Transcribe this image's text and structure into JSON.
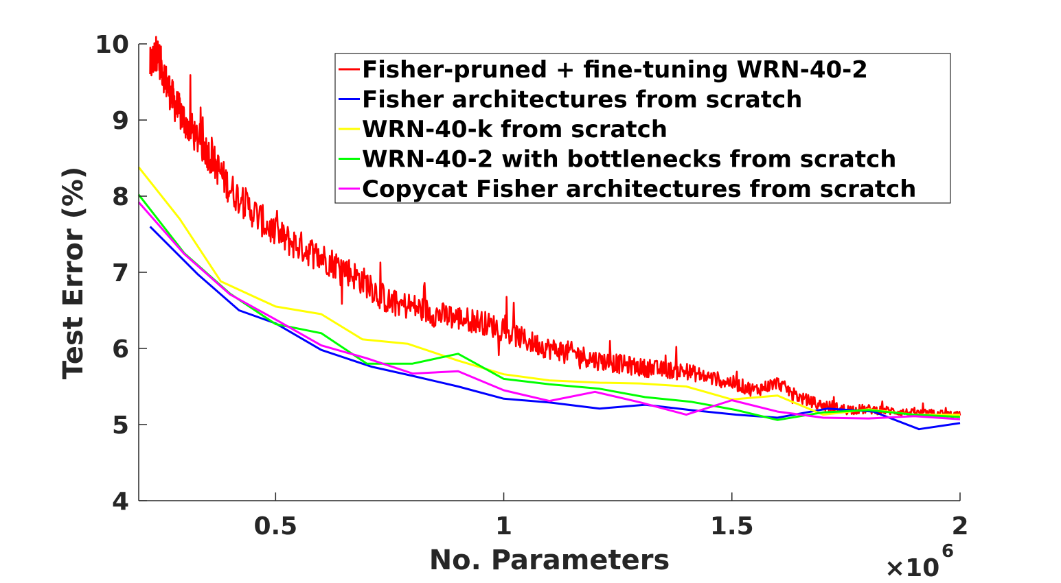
{
  "chart_data": {
    "type": "line",
    "xlabel": "No. Parameters",
    "ylabel": "Test Error (%)",
    "x_exponent_label": "×10",
    "x_exponent_power": "6",
    "xlim": [
      0.2,
      2.0
    ],
    "ylim": [
      4,
      10
    ],
    "x_ticks": [
      0.5,
      1,
      1.5,
      2
    ],
    "x_tick_labels": [
      "0.5",
      "1",
      "1.5",
      "2"
    ],
    "y_ticks": [
      4,
      5,
      6,
      7,
      8,
      9,
      10
    ],
    "y_tick_labels": [
      "4",
      "5",
      "6",
      "7",
      "8",
      "9",
      "10"
    ],
    "grid": false,
    "legend_position": "top-right",
    "series": [
      {
        "name": "Fisher-pruned + fine-tuning WRN-40-2",
        "color": "#ff0000",
        "noisy": true,
        "x": [
          0.225,
          0.24,
          0.26,
          0.28,
          0.3,
          0.33,
          0.36,
          0.4,
          0.45,
          0.5,
          0.55,
          0.6,
          0.65,
          0.7,
          0.75,
          0.8,
          0.85,
          0.9,
          0.95,
          1.0,
          1.05,
          1.1,
          1.15,
          1.2,
          1.25,
          1.3,
          1.35,
          1.4,
          1.45,
          1.5,
          1.55,
          1.6,
          1.65,
          1.7,
          1.75,
          1.8,
          1.85,
          1.9,
          1.95,
          2.0
        ],
        "y": [
          9.7,
          9.9,
          9.5,
          9.2,
          9.0,
          8.75,
          8.5,
          8.1,
          7.8,
          7.5,
          7.35,
          7.2,
          7.05,
          6.85,
          6.6,
          6.55,
          6.45,
          6.4,
          6.35,
          6.25,
          6.1,
          6.0,
          5.95,
          5.85,
          5.8,
          5.75,
          5.72,
          5.7,
          5.62,
          5.55,
          5.45,
          5.55,
          5.35,
          5.25,
          5.2,
          5.2,
          5.18,
          5.15,
          5.15,
          5.12
        ]
      },
      {
        "name": "Fisher architectures from scratch",
        "color": "#0000ff",
        "x": [
          0.225,
          0.33,
          0.42,
          0.5,
          0.6,
          0.71,
          0.8,
          0.9,
          1.0,
          1.1,
          1.21,
          1.31,
          1.41,
          1.51,
          1.6,
          1.71,
          1.81,
          1.91,
          2.0
        ],
        "y": [
          7.6,
          6.97,
          6.5,
          6.33,
          5.98,
          5.76,
          5.64,
          5.5,
          5.34,
          5.29,
          5.21,
          5.26,
          5.19,
          5.13,
          5.09,
          5.21,
          5.17,
          4.94,
          5.02
        ]
      },
      {
        "name": "WRN-40-k from scratch",
        "color": "#ffff00",
        "x": [
          0.2,
          0.29,
          0.38,
          0.5,
          0.6,
          0.69,
          0.79,
          0.9,
          1.0,
          1.1,
          1.21,
          1.3,
          1.4,
          1.5,
          1.6,
          1.7,
          1.8,
          1.9,
          2.0
        ],
        "y": [
          8.38,
          7.7,
          6.88,
          6.55,
          6.45,
          6.12,
          6.06,
          5.84,
          5.66,
          5.58,
          5.55,
          5.54,
          5.5,
          5.33,
          5.38,
          5.13,
          5.2,
          5.13,
          5.13
        ]
      },
      {
        "name": "WRN-40-2 with bottlenecks from scratch",
        "color": "#00ff00",
        "x": [
          0.2,
          0.3,
          0.4,
          0.5,
          0.6,
          0.7,
          0.8,
          0.9,
          1.0,
          1.1,
          1.21,
          1.31,
          1.41,
          1.51,
          1.6,
          1.7,
          1.8,
          1.9,
          2.0
        ],
        "y": [
          8.02,
          7.25,
          6.72,
          6.32,
          6.2,
          5.8,
          5.8,
          5.93,
          5.6,
          5.53,
          5.47,
          5.36,
          5.3,
          5.19,
          5.06,
          5.16,
          5.19,
          5.13,
          5.1
        ]
      },
      {
        "name": "Copycat Fisher architectures from scratch",
        "color": "#ff00ff",
        "x": [
          0.2,
          0.3,
          0.4,
          0.5,
          0.6,
          0.7,
          0.8,
          0.9,
          1.0,
          1.1,
          1.2,
          1.3,
          1.4,
          1.5,
          1.6,
          1.7,
          1.8,
          1.9,
          2.0
        ],
        "y": [
          7.92,
          7.24,
          6.71,
          6.38,
          6.04,
          5.87,
          5.67,
          5.7,
          5.45,
          5.31,
          5.43,
          5.29,
          5.13,
          5.32,
          5.17,
          5.09,
          5.08,
          5.11,
          5.07
        ]
      }
    ]
  }
}
